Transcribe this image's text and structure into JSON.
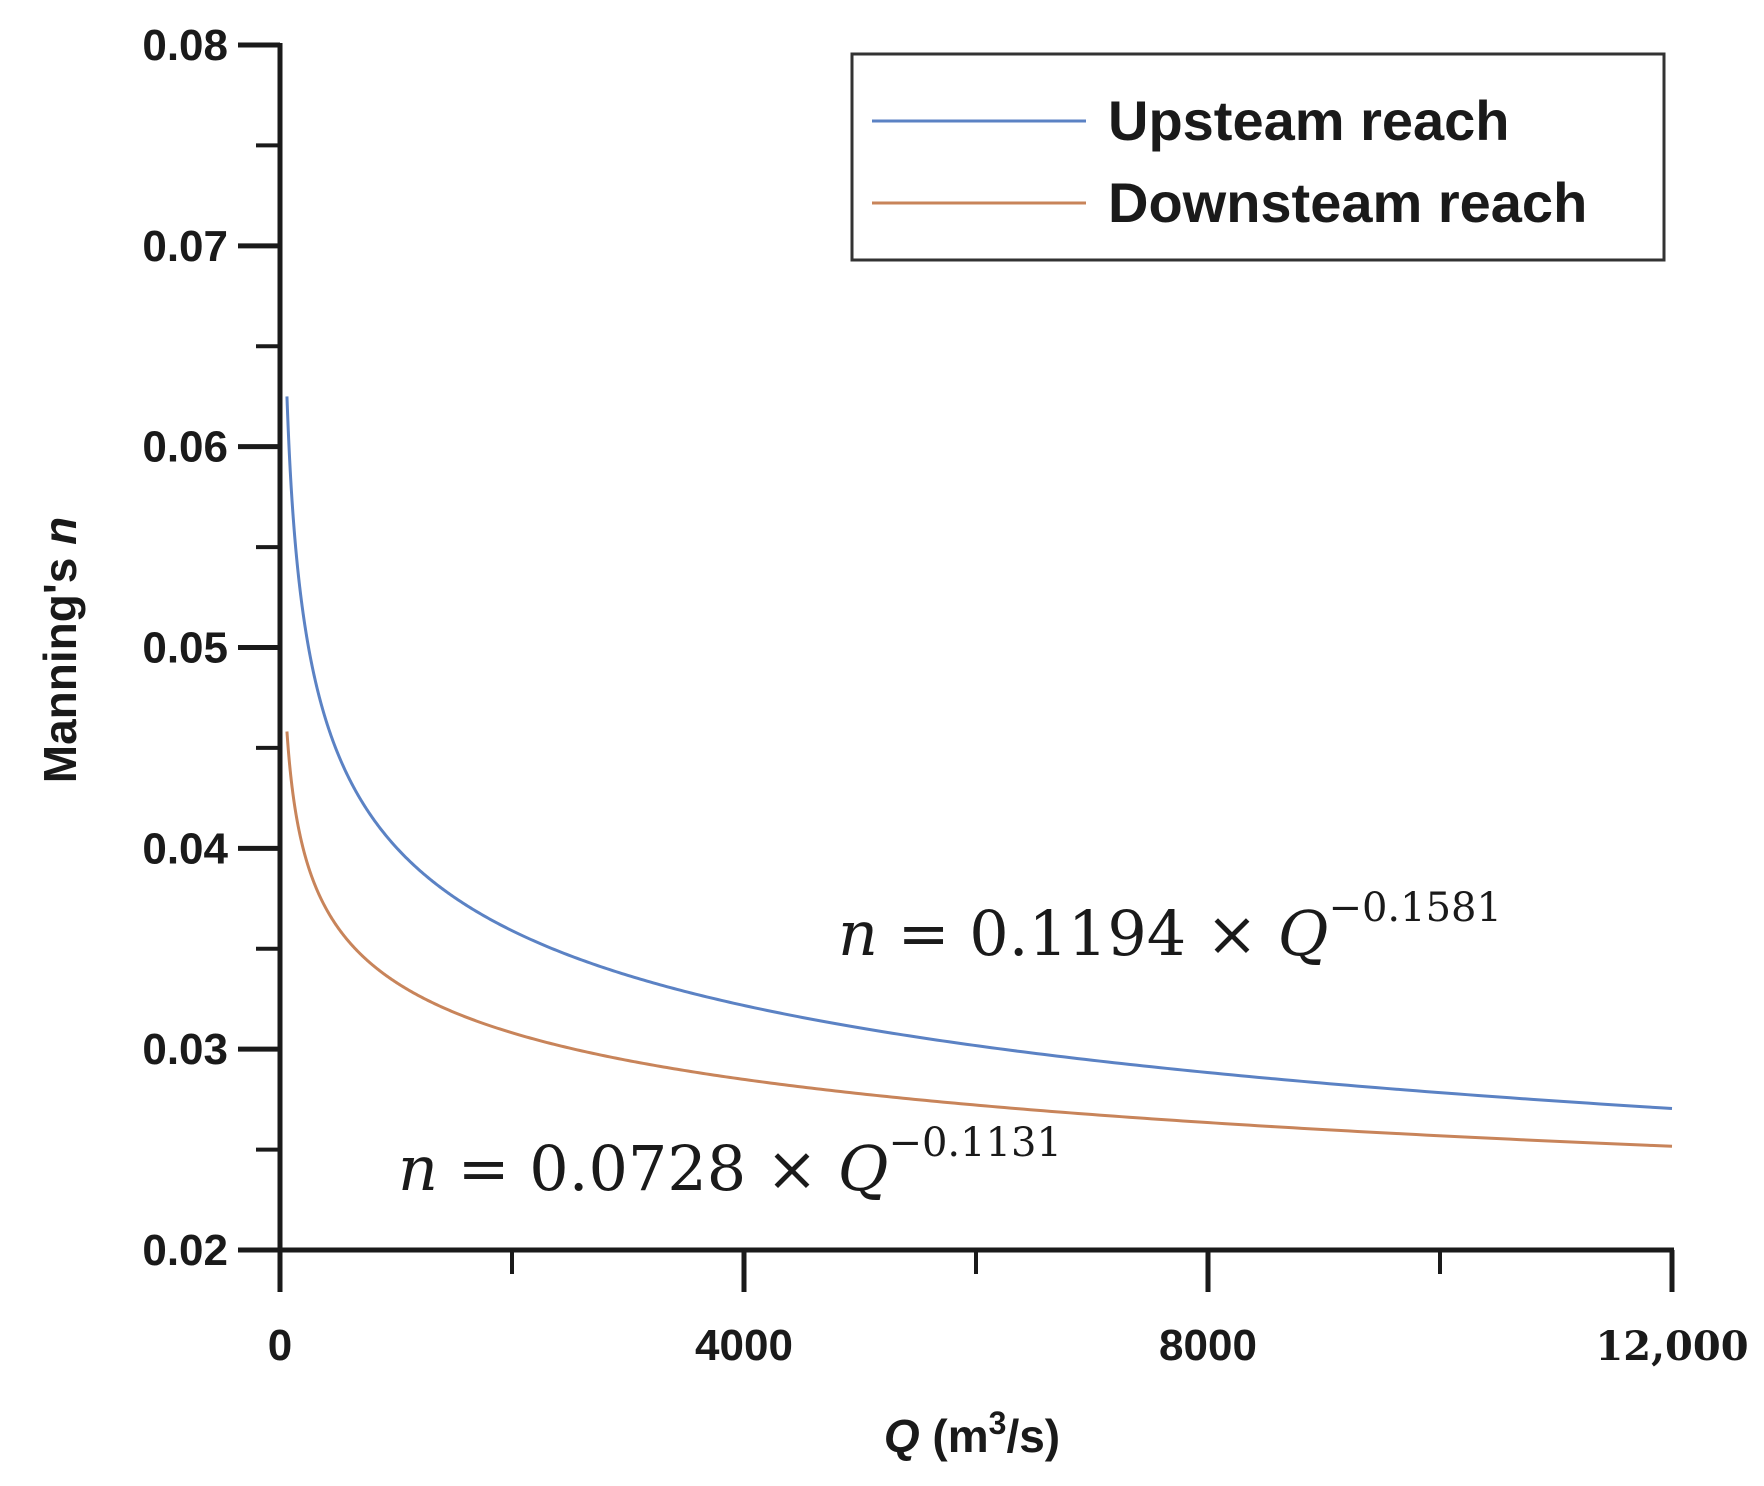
{
  "chart_data": {
    "type": "line",
    "xlabel_var": "Q",
    "xlabel_unit_pre": " (m",
    "xlabel_unit_sup": "3",
    "xlabel_unit_post": "/s)",
    "ylabel_text": "Manning's ",
    "ylabel_var": "n",
    "xlim": [
      0,
      12000
    ],
    "ylim": [
      0.02,
      0.08
    ],
    "x_ticks_major": [
      0,
      4000,
      8000,
      12000
    ],
    "x_tick_labels": [
      "0",
      "4000",
      "8000",
      "12,000"
    ],
    "x_ticks_minor": [
      2000,
      6000,
      10000
    ],
    "y_ticks_major": [
      0.02,
      0.03,
      0.04,
      0.05,
      0.06,
      0.07,
      0.08
    ],
    "y_tick_labels": [
      "0.02",
      "0.03",
      "0.04",
      "0.05",
      "0.06",
      "0.07",
      "0.08"
    ],
    "y_ticks_minor": [
      0.025,
      0.035,
      0.045,
      0.055,
      0.065,
      0.075
    ],
    "grid": false,
    "legend_position": "top-right",
    "series": [
      {
        "name": "Upsteam reach",
        "color": "#5b82c4",
        "coefficient": 0.1194,
        "exponent": -0.1581,
        "x": [
          60,
          80,
          100,
          150,
          200,
          300,
          400,
          500,
          700,
          1000,
          1500,
          2000,
          3000,
          4000,
          5000,
          6000,
          7000,
          8000,
          9000,
          10000,
          11000,
          12000
        ],
        "y": [
          0.0624,
          0.0597,
          0.0578,
          0.0541,
          0.0517,
          0.0485,
          0.0463,
          0.0448,
          0.0425,
          0.0402,
          0.0377,
          0.0361,
          0.0338,
          0.0323,
          0.0312,
          0.0303,
          0.0295,
          0.0289,
          0.0284,
          0.0279,
          0.0275,
          0.0271
        ],
        "equation_prefix": "n",
        "equation_mid": " = 0.1194 × ",
        "equation_var": "Q",
        "equation_exp": "−0.1581"
      },
      {
        "name": "Downsteam reach",
        "color": "#c8845a",
        "coefficient": 0.0728,
        "exponent": -0.1131,
        "x": [
          60,
          80,
          100,
          150,
          200,
          300,
          400,
          500,
          700,
          1000,
          1500,
          2000,
          3000,
          4000,
          5000,
          6000,
          7000,
          8000,
          9000,
          10000,
          11000,
          12000
        ],
        "y": [
          0.0458,
          0.0444,
          0.0433,
          0.0413,
          0.0399,
          0.0381,
          0.0369,
          0.0359,
          0.0346,
          0.0332,
          0.0317,
          0.0306,
          0.0292,
          0.0283,
          0.0276,
          0.027,
          0.0265,
          0.0261,
          0.0258,
          0.0255,
          0.0252,
          0.025
        ],
        "equation_prefix": "n",
        "equation_mid": " = 0.0728 × ",
        "equation_var": "Q",
        "equation_exp": "−0.1131"
      }
    ]
  }
}
